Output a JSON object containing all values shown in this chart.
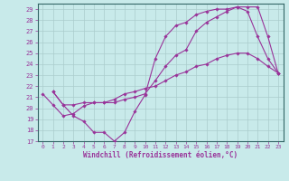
{
  "xlabel": "Windchill (Refroidissement éolien,°C)",
  "bg_color": "#c8eaea",
  "line_color": "#993399",
  "grid_color": "#aacccc",
  "spine_color": "#336666",
  "xlim": [
    -0.5,
    23.5
  ],
  "ylim": [
    17,
    29.5
  ],
  "yticks": [
    17,
    18,
    19,
    20,
    21,
    22,
    23,
    24,
    25,
    26,
    27,
    28,
    29
  ],
  "xticks": [
    0,
    1,
    2,
    3,
    4,
    5,
    6,
    7,
    8,
    9,
    10,
    11,
    12,
    13,
    14,
    15,
    16,
    17,
    18,
    19,
    20,
    21,
    22,
    23
  ],
  "curve1_x": [
    1,
    2,
    3,
    4,
    5,
    6,
    7,
    8,
    9,
    10,
    11,
    12,
    13,
    14,
    15,
    16,
    17,
    18,
    19,
    20,
    21,
    22,
    23
  ],
  "curve1_y": [
    21.5,
    20.3,
    19.3,
    18.8,
    17.8,
    17.8,
    17.0,
    17.8,
    19.7,
    21.2,
    24.5,
    26.5,
    27.5,
    27.8,
    28.5,
    28.8,
    29.0,
    29.0,
    29.2,
    28.8,
    26.5,
    24.5,
    23.2
  ],
  "curve2_x": [
    1,
    2,
    3,
    4,
    5,
    6,
    7,
    8,
    9,
    10,
    11,
    12,
    13,
    14,
    15,
    16,
    17,
    18,
    19,
    20,
    21,
    22,
    23
  ],
  "curve2_y": [
    21.5,
    20.3,
    20.3,
    20.5,
    20.5,
    20.5,
    20.5,
    20.8,
    21.0,
    21.3,
    22.5,
    23.8,
    24.8,
    25.3,
    27.0,
    27.8,
    28.3,
    28.8,
    29.2,
    29.2,
    29.2,
    26.5,
    23.2
  ],
  "curve3_x": [
    0,
    1,
    2,
    3,
    4,
    5,
    6,
    7,
    8,
    9,
    10,
    11,
    12,
    13,
    14,
    15,
    16,
    17,
    18,
    19,
    20,
    21,
    22,
    23
  ],
  "curve3_y": [
    21.3,
    20.3,
    19.3,
    19.5,
    20.2,
    20.5,
    20.5,
    20.8,
    21.3,
    21.5,
    21.8,
    22.0,
    22.5,
    23.0,
    23.3,
    23.8,
    24.0,
    24.5,
    24.8,
    25.0,
    25.0,
    24.5,
    23.8,
    23.2
  ],
  "xlabel_fontsize": 5.5,
  "tick_fontsize": 4.5,
  "ytick_fontsize": 5
}
